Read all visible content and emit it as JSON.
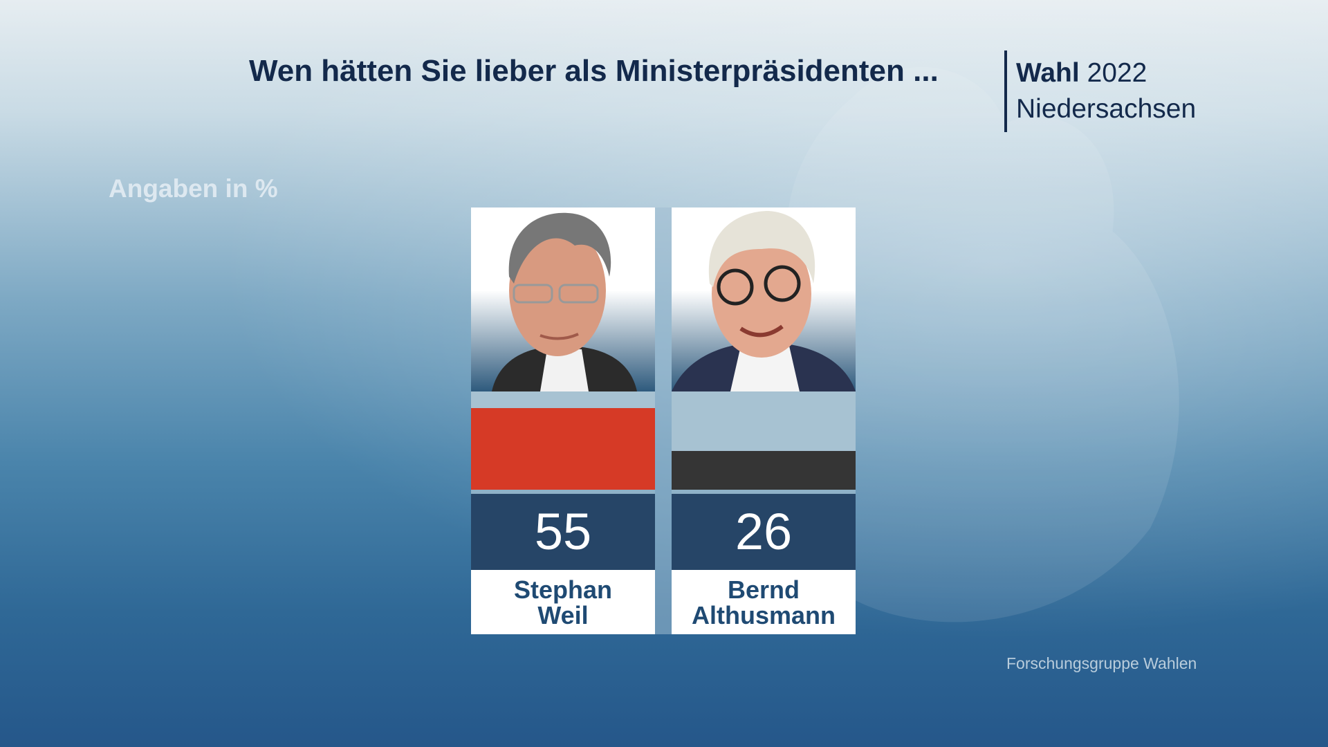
{
  "header": {
    "title": "Wen hätten Sie lieber als Ministerpräsidenten ...",
    "election_bold": "Wahl",
    "election_year": "2022",
    "region": "Niedersachsen"
  },
  "unit_label": "Angaben in %",
  "source": "Forschungsgruppe Wahlen",
  "chart_data": {
    "type": "bar",
    "title": "Wen hätten Sie lieber als Ministerpräsidenten ...",
    "ylabel": "Angaben in %",
    "categories": [
      "Stephan Weil",
      "Bernd Althusmann"
    ],
    "values": [
      55,
      26
    ],
    "colors": [
      "#d63a26",
      "#353535"
    ],
    "ylim": [
      0,
      66
    ]
  },
  "candidates": [
    {
      "first": "Stephan",
      "last": "Weil",
      "value": "55"
    },
    {
      "first": "Bernd",
      "last": "Althusmann",
      "value": "26"
    }
  ]
}
